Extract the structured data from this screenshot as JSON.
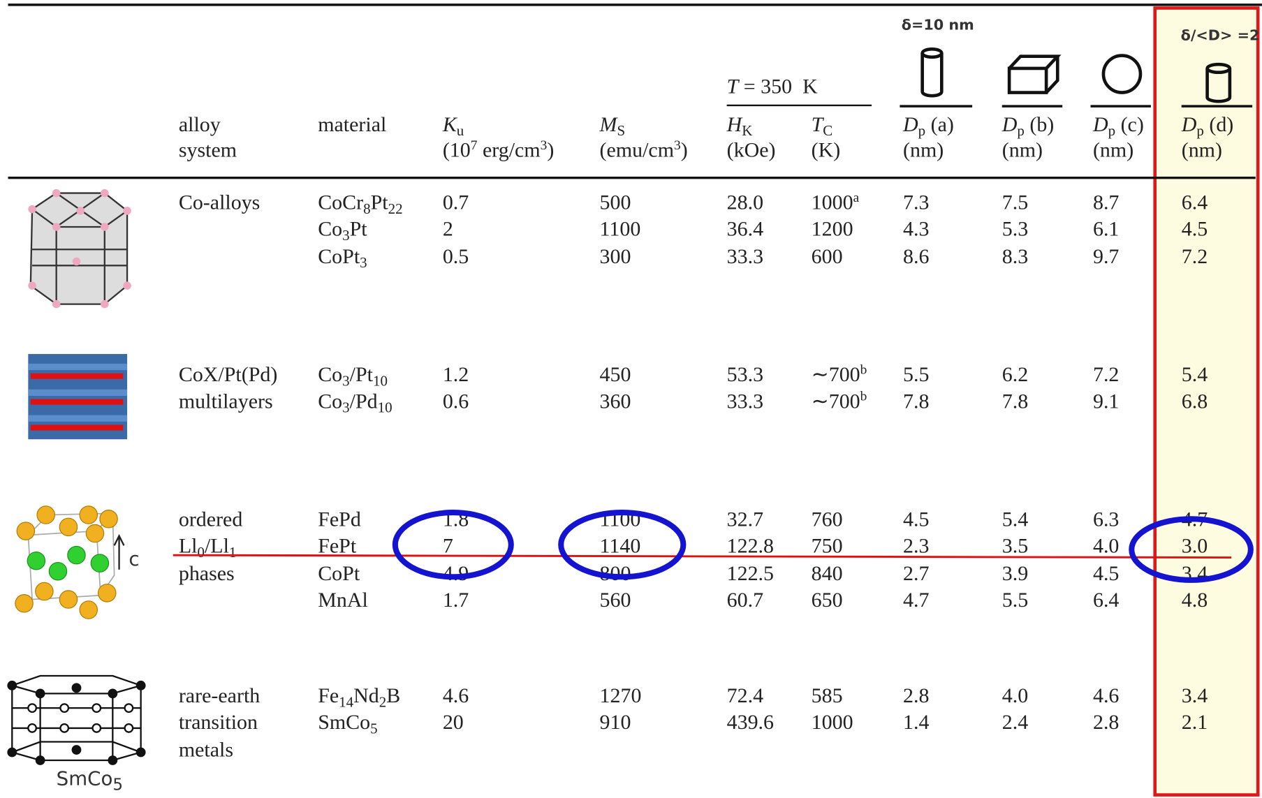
{
  "header": {
    "columns": [
      {
        "line1": [
          {
            "text": "alloy"
          }
        ],
        "line2": [
          {
            "text": "system"
          }
        ]
      },
      {
        "line1": [
          {
            "text": "material"
          }
        ]
      },
      {
        "line1": [
          {
            "text": "K",
            "style": "i"
          },
          {
            "text": "u",
            "style": "sub"
          }
        ],
        "line2": [
          {
            "text": "(10"
          },
          {
            "text": "7",
            "style": "sup"
          },
          {
            "text": " erg/cm"
          },
          {
            "text": "3",
            "style": "sup"
          },
          {
            "text": ")"
          }
        ]
      },
      {
        "line1": [
          {
            "text": "M",
            "style": "i"
          },
          {
            "text": "S",
            "style": "sub"
          }
        ],
        "line2": [
          {
            "text": "(emu/cm"
          },
          {
            "text": "3",
            "style": "sup"
          },
          {
            "text": ")"
          }
        ]
      },
      {
        "line1": [
          {
            "text": "H",
            "style": "i"
          },
          {
            "text": "K",
            "style": "sub"
          }
        ],
        "line2": [
          {
            "text": "(kOe)"
          }
        ]
      },
      {
        "line1": [
          {
            "text": "T",
            "style": "i"
          },
          {
            "text": "C",
            "style": "sub"
          }
        ],
        "line2": [
          {
            "text": "(K)"
          }
        ]
      },
      {
        "line1": [
          {
            "text": "D",
            "style": "i"
          },
          {
            "text": "p",
            "style": "sub"
          },
          {
            "text": " (a)"
          }
        ],
        "line2": [
          {
            "text": "(nm)"
          }
        ]
      },
      {
        "line1": [
          {
            "text": "D",
            "style": "i"
          },
          {
            "text": "p",
            "style": "sub"
          },
          {
            "text": " (b)"
          }
        ],
        "line2": [
          {
            "text": "(nm)"
          }
        ]
      },
      {
        "line1": [
          {
            "text": "D",
            "style": "i"
          },
          {
            "text": "p",
            "style": "sub"
          },
          {
            "text": " (c)"
          }
        ],
        "line2": [
          {
            "text": "(nm)"
          }
        ]
      },
      {
        "line1": [
          {
            "text": "D",
            "style": "i"
          },
          {
            "text": "p",
            "style": "sub"
          },
          {
            "text": " (d)"
          }
        ],
        "line2": [
          {
            "text": "(nm)"
          }
        ]
      }
    ],
    "span_label": [
      {
        "text": "T",
        "style": "i"
      },
      {
        "text": " = 350  K"
      }
    ],
    "delta_label": "δ=10 nm",
    "ratio_label": "δ/<D> =2"
  },
  "table": {
    "groups": [
      {
        "alloy_system": [
          "Co-alloys"
        ],
        "rows": [
          {
            "cells": [
              "CoCr8Pt22",
              "0.7",
              "500",
              "28.0",
              "1000",
              "7.3",
              "7.5",
              "8.7",
              "6.4"
            ],
            "note": "a"
          },
          {
            "cells": [
              "Co3Pt",
              "2",
              "1100",
              "36.4",
              "1200",
              "4.3",
              "5.3",
              "6.1",
              "4.5"
            ]
          },
          {
            "cells": [
              "CoPt3",
              "0.5",
              "300",
              "33.3",
              "600",
              "8.6",
              "8.3",
              "9.7",
              "7.2"
            ]
          }
        ]
      },
      {
        "alloy_system": [
          "CoX/Pt(Pd)",
          "multilayers"
        ],
        "rows": [
          {
            "cells": [
              "Co3/Pt10",
              "1.2",
              "450",
              "53.3",
              "∼700",
              "5.5",
              "6.2",
              "7.2",
              "5.4"
            ],
            "note": "b"
          },
          {
            "cells": [
              "Co3/Pd10",
              "0.6",
              "360",
              "33.3",
              "∼700",
              "7.8",
              "7.8",
              "9.1",
              "6.8"
            ],
            "note": "b"
          }
        ]
      },
      {
        "alloy_system": [
          "ordered",
          "Ll0/Ll1",
          "phases"
        ],
        "image_label": "c",
        "rows": [
          {
            "cells": [
              "FePd",
              "1.8",
              "1100",
              "32.7",
              "760",
              "4.5",
              "5.4",
              "6.3",
              "4.7"
            ]
          },
          {
            "cells": [
              "FePt",
              "7",
              "1140",
              "122.8",
              "750",
              "2.3",
              "3.5",
              "4.0",
              "3.0"
            ]
          },
          {
            "cells": [
              "CoPt",
              "4.9",
              "800",
              "122.5",
              "840",
              "2.7",
              "3.9",
              "4.5",
              "3.4"
            ]
          },
          {
            "cells": [
              "MnAl",
              "1.7",
              "560",
              "60.7",
              "650",
              "4.7",
              "5.5",
              "6.4",
              "4.8"
            ]
          }
        ]
      },
      {
        "alloy_system": [
          "rare-earth",
          "transition",
          "metals"
        ],
        "image_label": "SmCo5",
        "rows": [
          {
            "cells": [
              "Fe14Nd2B",
              "4.6",
              "1270",
              "72.4",
              "585",
              "2.8",
              "4.0",
              "4.6",
              "3.4"
            ]
          },
          {
            "cells": [
              "SmCo5",
              "20",
              "910",
              "439.6",
              "1000",
              "1.4",
              "2.4",
              "2.8",
              "2.1"
            ]
          }
        ]
      }
    ]
  }
}
